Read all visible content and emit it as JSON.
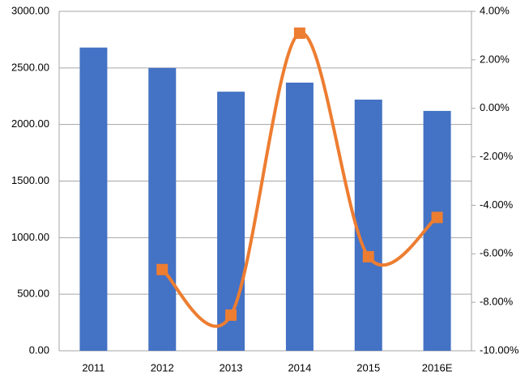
{
  "chart_data": {
    "type": "bar",
    "categories": [
      "2011",
      "2012",
      "2013",
      "2014",
      "2015",
      "2016E"
    ],
    "series": [
      {
        "type": "bar",
        "color": "#4472c4",
        "values": [
          2680,
          2500,
          2290,
          2370,
          2220,
          2120
        ]
      },
      {
        "type": "line",
        "axis": "y2",
        "color": "#ed7d31",
        "smooth": true,
        "values": [
          null,
          -6.65,
          -8.53,
          3.1,
          -6.12,
          -4.5
        ]
      }
    ],
    "ylim": [
      0,
      3000
    ],
    "yticks": [
      {
        "value": 0,
        "label": "0.00"
      },
      {
        "value": 500,
        "label": "500.00"
      },
      {
        "value": 1000,
        "label": "1000.00"
      },
      {
        "value": 1500,
        "label": "1500.00"
      },
      {
        "value": 2000,
        "label": "2000.00"
      },
      {
        "value": 2500,
        "label": "2500.00"
      },
      {
        "value": 3000,
        "label": "3000.00"
      }
    ],
    "y2lim": [
      -10,
      4
    ],
    "y2ticks": [
      {
        "value": -10,
        "label": "-10.00%"
      },
      {
        "value": -8,
        "label": "-8.00%"
      },
      {
        "value": -6,
        "label": "-6.00%"
      },
      {
        "value": -4,
        "label": "-4.00%"
      },
      {
        "value": -2,
        "label": "-2.00%"
      },
      {
        "value": 0,
        "label": "0.00%"
      },
      {
        "value": 2,
        "label": "2.00%"
      },
      {
        "value": 4,
        "label": "4.00%"
      }
    ],
    "grid": true
  }
}
